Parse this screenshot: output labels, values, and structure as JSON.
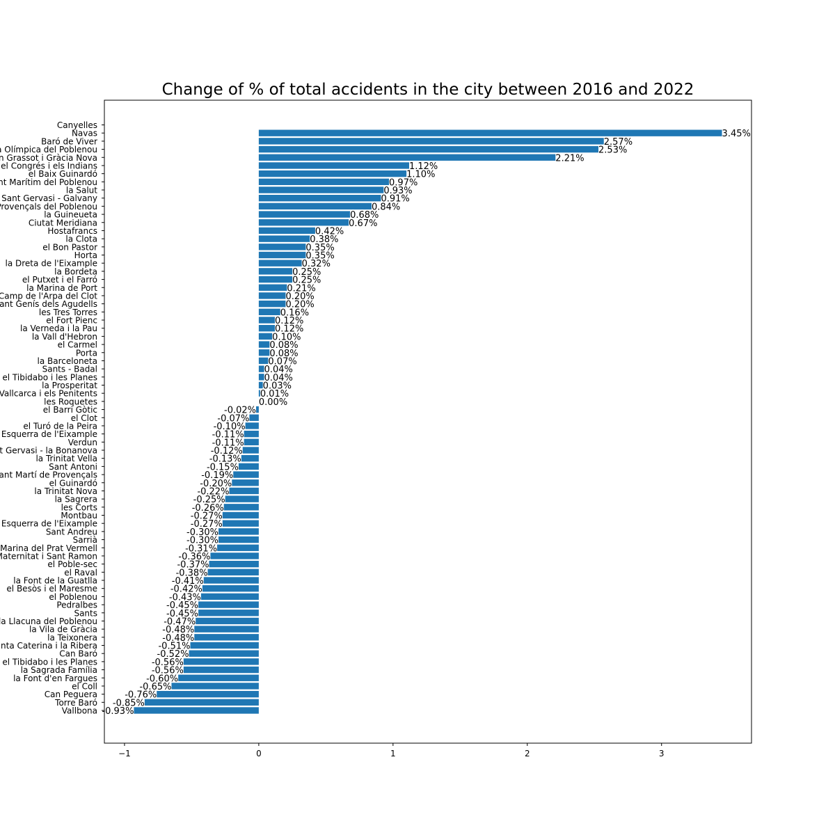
{
  "chart_data": {
    "type": "bar",
    "orientation": "horizontal",
    "title": "Change of % of total accidents in the city between 2016 and 2022",
    "xlabel": "",
    "ylabel": "",
    "xlim": [
      -1.15,
      3.67
    ],
    "xticks": [
      -1,
      0,
      1,
      2,
      3
    ],
    "xtick_labels": [
      "−1",
      "0",
      "1",
      "2",
      "3"
    ],
    "bar_color": "#1f77b4",
    "categories": [
      "Canyelles",
      "Navas",
      "Baró de Viver",
      "la Vila Olímpica del Poblenou",
      "el Camp d'en Grassot i Gràcia Nova",
      "el Congrés i els Indians",
      "el Baix Guinardó",
      "Diagonal Mar i el Front Marítim del Poblenou",
      "la Salut",
      "Sant Gervasi - Galvany",
      "Provençals del Poblenou",
      "la Guineueta",
      "Ciutat Meridiana",
      "Hostafrancs",
      "la Clota",
      "el Bon Pastor",
      "Horta",
      "la Dreta de l'Eixample",
      "la Bordeta",
      "el Putxet i el Farró",
      "la Marina de Port",
      "el Camp de l'Arpa del Clot",
      "Sant Genís dels Agudells",
      "les Tres Torres",
      "el Fort Pienc",
      "la Verneda i la Pau",
      "la Vall d'Hebron",
      "el Carmel",
      "Porta",
      "la Barceloneta",
      "Sants - Badal",
      "Vallvidrera, el Tibidabo i les Planes",
      "la Prosperitat",
      "Vallcarca i els Penitents",
      "les Roquetes",
      "el Barri Gòtic",
      "el Clot",
      "el Turó de la Peira",
      "la Nova Esquerra de l'Eixample",
      "Verdun",
      "Sant Gervasi - la Bonanova",
      "la Trinitat Vella",
      "Sant Antoni",
      "Sant Martí de Provençals",
      "el Guinardó",
      "la Trinitat Nova",
      "la Sagrera",
      "les Corts",
      "Montbau",
      "l'Antiga Esquerra de l'Eixample",
      "Sant Andreu",
      "Sarrià",
      "la Marina del Prat Vermell",
      "la Maternitat i Sant Ramon",
      "el Poble-sec",
      "el Raval",
      "la Font de la Guatlla",
      "el Besòs i el Maresme",
      "el Poblenou",
      "Pedralbes",
      "Sants",
      "el Parc i la Llacuna del Poblenou",
      "la Vila de Gràcia",
      "la Teixonera",
      "Sant Pere, Santa Caterina i la Ribera",
      "Can Baró",
      "Vallvidrera, el Tibidabo i les Planes",
      "la Sagrada Família",
      "la Font d'en Fargues",
      "el Coll",
      "Can Peguera",
      "Torre Baró",
      "Vallbona"
    ],
    "values": [
      null,
      3.45,
      2.57,
      2.53,
      2.21,
      1.12,
      1.1,
      0.97,
      0.93,
      0.91,
      0.84,
      0.68,
      0.67,
      0.42,
      0.38,
      0.35,
      0.35,
      0.32,
      0.25,
      0.25,
      0.21,
      0.2,
      0.2,
      0.16,
      0.12,
      0.12,
      0.1,
      0.08,
      0.08,
      0.07,
      0.04,
      0.04,
      0.03,
      0.01,
      0.0,
      -0.02,
      -0.07,
      -0.1,
      -0.11,
      -0.11,
      -0.12,
      -0.13,
      -0.15,
      -0.19,
      -0.2,
      -0.22,
      -0.25,
      -0.26,
      -0.27,
      -0.27,
      -0.3,
      -0.3,
      -0.31,
      -0.36,
      -0.37,
      -0.38,
      -0.41,
      -0.42,
      -0.43,
      -0.45,
      -0.45,
      -0.47,
      -0.48,
      -0.48,
      -0.51,
      -0.52,
      -0.56,
      -0.56,
      -0.6,
      -0.65,
      -0.76,
      -0.85,
      -0.93
    ],
    "value_labels": [
      "",
      "3.45%",
      "2.57%",
      "2.53%",
      "2.21%",
      "1.12%",
      "1.10%",
      "0.97%",
      "0.93%",
      "0.91%",
      "0.84%",
      "0.68%",
      "0.67%",
      "0.42%",
      "0.38%",
      "0.35%",
      "0.35%",
      "0.32%",
      "0.25%",
      "0.25%",
      "0.21%",
      "0.20%",
      "0.20%",
      "0.16%",
      "0.12%",
      "0.12%",
      "0.10%",
      "0.08%",
      "0.08%",
      "0.07%",
      "0.04%",
      "0.04%",
      "0.03%",
      "0.01%",
      "0.00%",
      "-0.02%",
      "-0.07%",
      "-0.10%",
      "-0.11%",
      "-0.11%",
      "-0.12%",
      "-0.13%",
      "-0.15%",
      "-0.19%",
      "-0.20%",
      "-0.22%",
      "-0.25%",
      "-0.26%",
      "-0.27%",
      "-0.27%",
      "-0.30%",
      "-0.30%",
      "-0.31%",
      "-0.36%",
      "-0.37%",
      "-0.38%",
      "-0.41%",
      "-0.42%",
      "-0.43%",
      "-0.45%",
      "-0.45%",
      "-0.47%",
      "-0.48%",
      "-0.48%",
      "-0.51%",
      "-0.52%",
      "-0.56%",
      "-0.56%",
      "-0.60%",
      "-0.65%",
      "-0.76%",
      "-0.85%",
      "-0.93%"
    ],
    "grid": false,
    "legend": "none"
  }
}
